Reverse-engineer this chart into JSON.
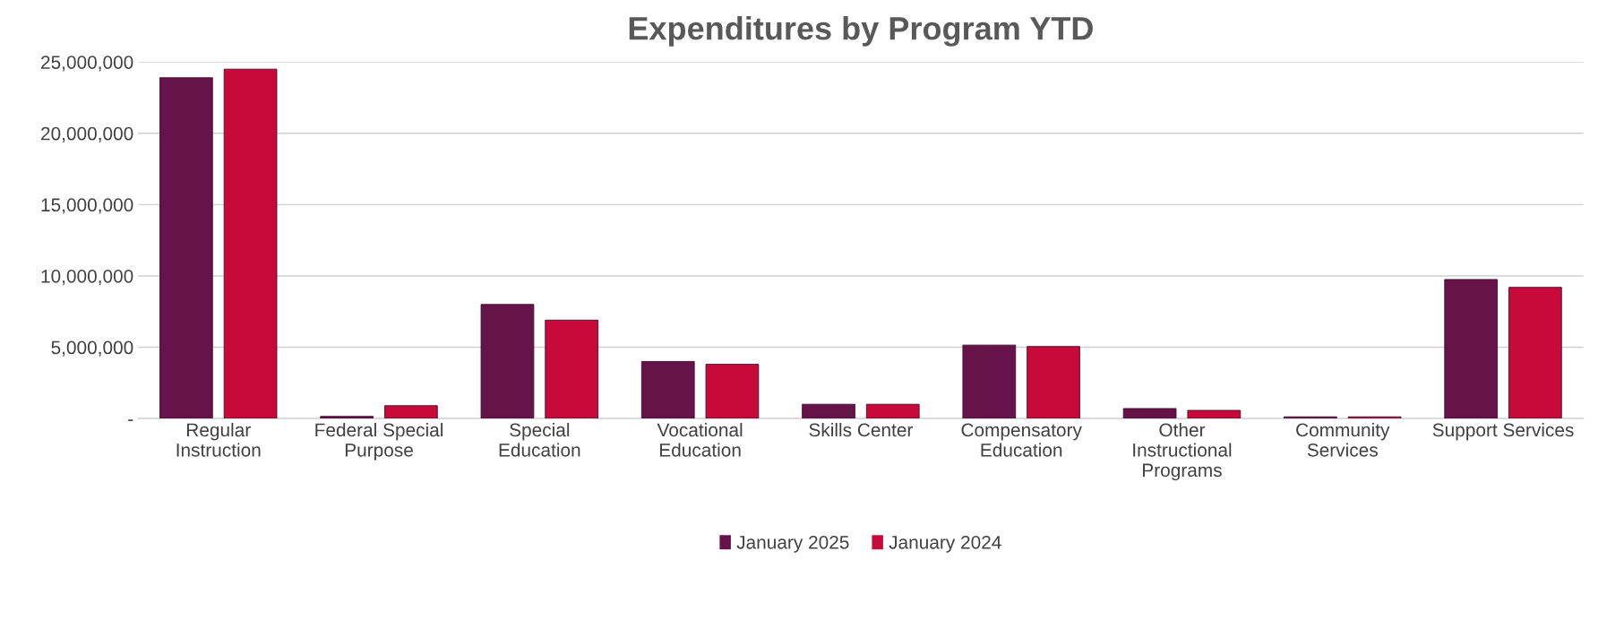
{
  "chart_data": {
    "type": "bar",
    "title": "Expenditures by Program YTD",
    "categories": [
      "Regular\nInstruction",
      "Federal Special\nPurpose",
      "Special\nEducation",
      "Vocational\nEducation",
      "Skills Center",
      "Compensatory\nEducation",
      "Other\nInstructional\nPrograms",
      "Community\nServices",
      "Support Services"
    ],
    "series": [
      {
        "name": "January 2025",
        "color": "#651349",
        "values": [
          23900000,
          150000,
          8000000,
          4000000,
          1000000,
          5150000,
          700000,
          120000,
          9750000
        ]
      },
      {
        "name": "January 2024",
        "color": "#c70a3a",
        "values": [
          24500000,
          900000,
          6900000,
          3800000,
          1000000,
          5050000,
          570000,
          120000,
          9200000
        ]
      }
    ],
    "ylim": [
      0,
      25000000
    ],
    "yticks": [
      {
        "value": 0,
        "label": "-"
      },
      {
        "value": 5000000,
        "label": "5,000,000"
      },
      {
        "value": 10000000,
        "label": "10,000,000"
      },
      {
        "value": 15000000,
        "label": "15,000,000"
      },
      {
        "value": 20000000,
        "label": "20,000,000"
      },
      {
        "value": 25000000,
        "label": "25,000,000"
      }
    ],
    "grid": "y",
    "legend": "bottom"
  }
}
